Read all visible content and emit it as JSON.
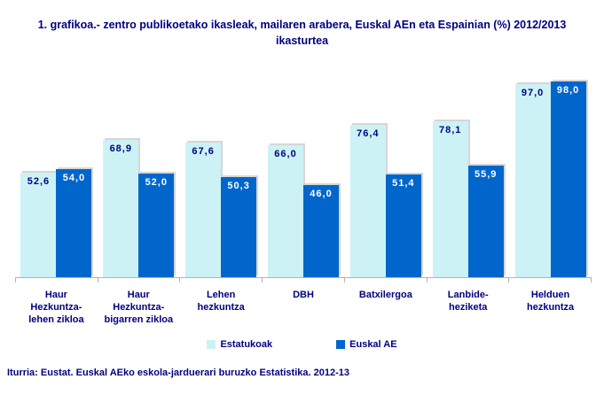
{
  "title": "1. grafikoa.- zentro publikoetako ikasleak, mailaren arabera, Euskal AEn eta Espainian (%) 2012/2013 ikasturtea",
  "footer": "Iturria: Eustat. Euskal AEko eskola-jarduerari buruzko Estatistika. 2012-13",
  "colors": {
    "text_navy": "#000080",
    "estatukoak_bar": "#ccf2f5",
    "euskal_ae_bar": "#0066cc",
    "axis_line": "#b3b3b3"
  },
  "legend": [
    {
      "label": "Estatukoak",
      "color": "#ccf2f5"
    },
    {
      "label": "Euskal AE",
      "color": "#0066cc"
    }
  ],
  "chart_data": {
    "type": "bar",
    "title": "1. grafikoa.- zentro publikoetako ikasleak, mailaren arabera, Euskal AEn eta Espainian (%) 2012/2013 ikasturtea",
    "categories": [
      "Haur\nHezkuntza-\nlehen zikloa",
      "Haur\nHezkuntza-\nbigarren zikloa",
      "Lehen\nhezkuntza",
      "DBH",
      "Batxilergoa",
      "Lanbide-\nheziketa",
      "Helduen\nhezkuntza"
    ],
    "series": [
      {
        "name": "Estatukoak",
        "color": "#ccf2f5",
        "values": [
          52.6,
          68.9,
          67.6,
          66.0,
          76.4,
          78.1,
          97.0
        ]
      },
      {
        "name": "Euskal AE",
        "color": "#0066cc",
        "values": [
          54.0,
          52.0,
          50.3,
          46.0,
          51.4,
          55.9,
          98.0
        ]
      }
    ],
    "value_label_format": "decimal-comma-1",
    "xlabel": "",
    "ylabel": "",
    "ylim": [
      0,
      100
    ],
    "grid": false,
    "y_axis_visible": false,
    "legend_position": "bottom"
  }
}
